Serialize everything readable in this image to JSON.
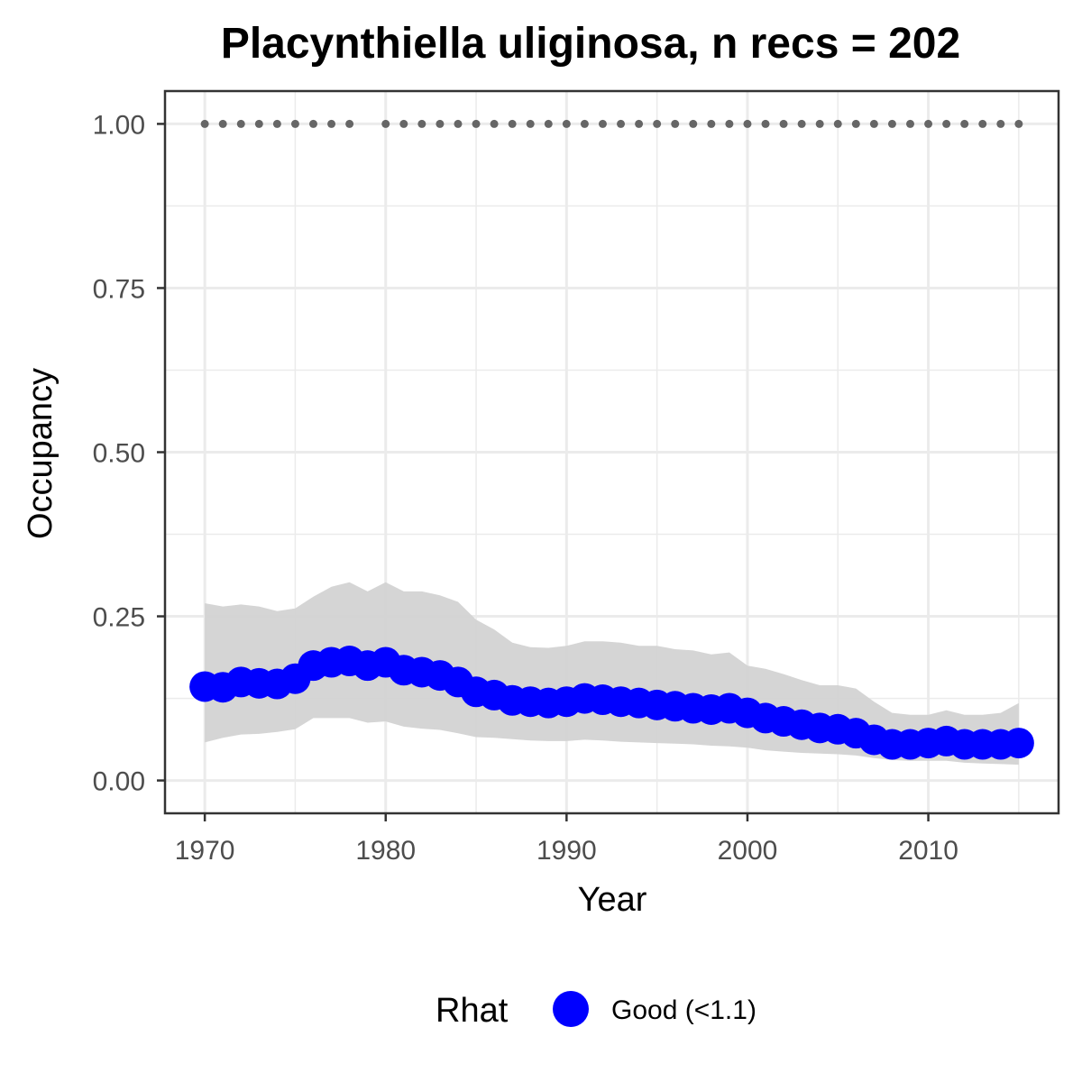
{
  "chart_data": {
    "type": "line",
    "title": "Placynthiella uliginosa, n recs = 202",
    "xlabel": "Year",
    "ylabel": "Occupancy",
    "xlim": [
      1967.8,
      2017.2
    ],
    "ylim": [
      -0.05,
      1.05
    ],
    "x_ticks": [
      1970,
      1980,
      1990,
      2000,
      2010
    ],
    "y_ticks": [
      0,
      0.25,
      0.5,
      0.75,
      1.0
    ],
    "x_tick_labels": [
      "1970",
      "1980",
      "1990",
      "2000",
      "2010"
    ],
    "y_tick_labels": [
      "0.00",
      "0.25",
      "0.50",
      "0.75",
      "1.00"
    ],
    "grid": true,
    "legend": {
      "title": "Rhat",
      "position": "bottom",
      "entries": [
        {
          "label": "Good (<1.1)",
          "color": "#0000ff"
        }
      ]
    },
    "colors": {
      "mean": "#0000ff",
      "ribbon": "#d3d3d3",
      "records": "#666666",
      "grid": "#ebebeb",
      "border": "#333333"
    },
    "x": [
      1970,
      1971,
      1972,
      1973,
      1974,
      1975,
      1976,
      1977,
      1978,
      1979,
      1980,
      1981,
      1982,
      1983,
      1984,
      1985,
      1986,
      1987,
      1988,
      1989,
      1990,
      1991,
      1992,
      1993,
      1994,
      1995,
      1996,
      1997,
      1998,
      1999,
      2000,
      2001,
      2002,
      2003,
      2004,
      2005,
      2006,
      2007,
      2008,
      2009,
      2010,
      2011,
      2012,
      2013,
      2014,
      2015
    ],
    "series": [
      {
        "name": "Good (<1.1)",
        "mean": [
          0.143,
          0.142,
          0.15,
          0.148,
          0.147,
          0.155,
          0.175,
          0.18,
          0.182,
          0.175,
          0.18,
          0.168,
          0.165,
          0.16,
          0.15,
          0.135,
          0.13,
          0.122,
          0.12,
          0.118,
          0.12,
          0.125,
          0.123,
          0.12,
          0.118,
          0.115,
          0.113,
          0.11,
          0.108,
          0.11,
          0.103,
          0.095,
          0.09,
          0.085,
          0.08,
          0.078,
          0.072,
          0.062,
          0.055,
          0.055,
          0.057,
          0.06,
          0.055,
          0.055,
          0.055,
          0.057
        ],
        "lower": [
          0.058,
          0.065,
          0.07,
          0.071,
          0.074,
          0.078,
          0.095,
          0.095,
          0.095,
          0.088,
          0.09,
          0.082,
          0.079,
          0.077,
          0.072,
          0.066,
          0.065,
          0.063,
          0.061,
          0.06,
          0.06,
          0.062,
          0.061,
          0.059,
          0.058,
          0.057,
          0.056,
          0.055,
          0.053,
          0.052,
          0.05,
          0.046,
          0.044,
          0.042,
          0.041,
          0.04,
          0.038,
          0.034,
          0.031,
          0.03,
          0.03,
          0.03,
          0.027,
          0.026,
          0.025,
          0.024
        ],
        "upper": [
          0.27,
          0.265,
          0.268,
          0.265,
          0.258,
          0.262,
          0.28,
          0.295,
          0.302,
          0.288,
          0.302,
          0.288,
          0.288,
          0.282,
          0.272,
          0.245,
          0.23,
          0.21,
          0.203,
          0.202,
          0.205,
          0.212,
          0.212,
          0.21,
          0.205,
          0.205,
          0.2,
          0.198,
          0.192,
          0.195,
          0.175,
          0.17,
          0.162,
          0.153,
          0.145,
          0.145,
          0.14,
          0.12,
          0.103,
          0.1,
          0.1,
          0.107,
          0.1,
          0.1,
          0.103,
          0.118
        ]
      }
    ],
    "record_years": [
      1970,
      1971,
      1972,
      1973,
      1974,
      1975,
      1976,
      1977,
      1978,
      1980,
      1981,
      1982,
      1983,
      1984,
      1985,
      1986,
      1987,
      1988,
      1989,
      1990,
      1991,
      1992,
      1993,
      1994,
      1995,
      1996,
      1997,
      1998,
      1999,
      2000,
      2001,
      2002,
      2003,
      2004,
      2005,
      2006,
      2007,
      2008,
      2009,
      2010,
      2011,
      2012,
      2013,
      2014,
      2015
    ],
    "record_value": 1.0
  }
}
